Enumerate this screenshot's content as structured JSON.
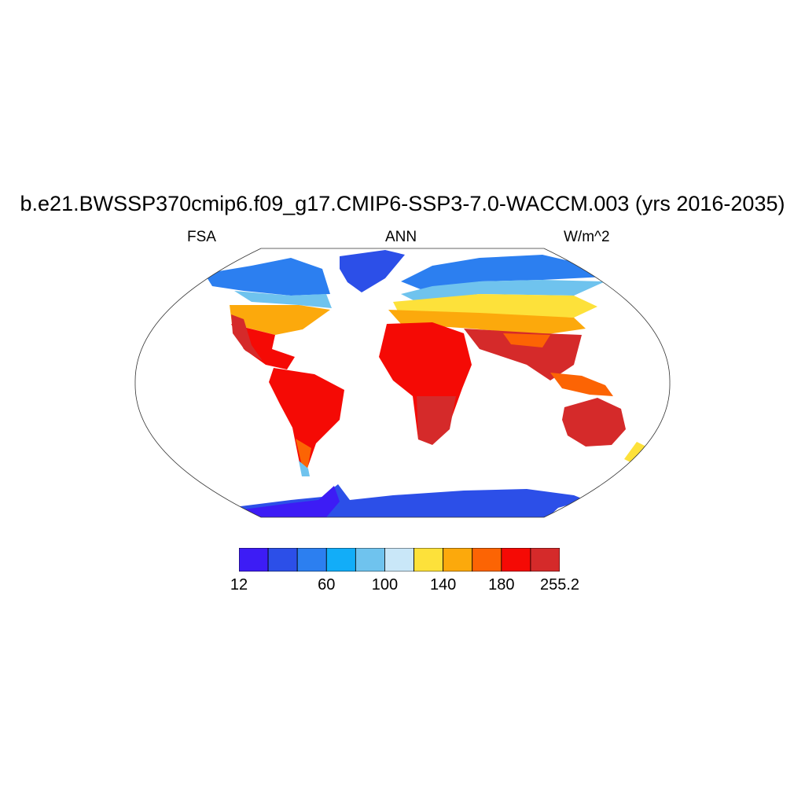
{
  "title": "b.e21.BWSSP370cmip6.f09_g17.CMIP6-SSP3-7.0-WACCM.003 (yrs 2016-2035)",
  "left_label": "FSA",
  "center_label": "ANN",
  "right_label": "W/m^2",
  "colorbar": {
    "colors": [
      "#3d1cf5",
      "#2c4fe8",
      "#2c7ff0",
      "#12adf8",
      "#6fc3ee",
      "#c9e7f8",
      "#fde13a",
      "#fca90c",
      "#fc6404",
      "#f50a05",
      "#d52a2a"
    ],
    "tick_labels": [
      {
        "text": "12",
        "boundary": 0
      },
      {
        "text": "60",
        "boundary": 3
      },
      {
        "text": "100",
        "boundary": 5
      },
      {
        "text": "140",
        "boundary": 7
      },
      {
        "text": "180",
        "boundary": 9
      },
      {
        "text": "255.2",
        "boundary": 11
      }
    ]
  }
}
